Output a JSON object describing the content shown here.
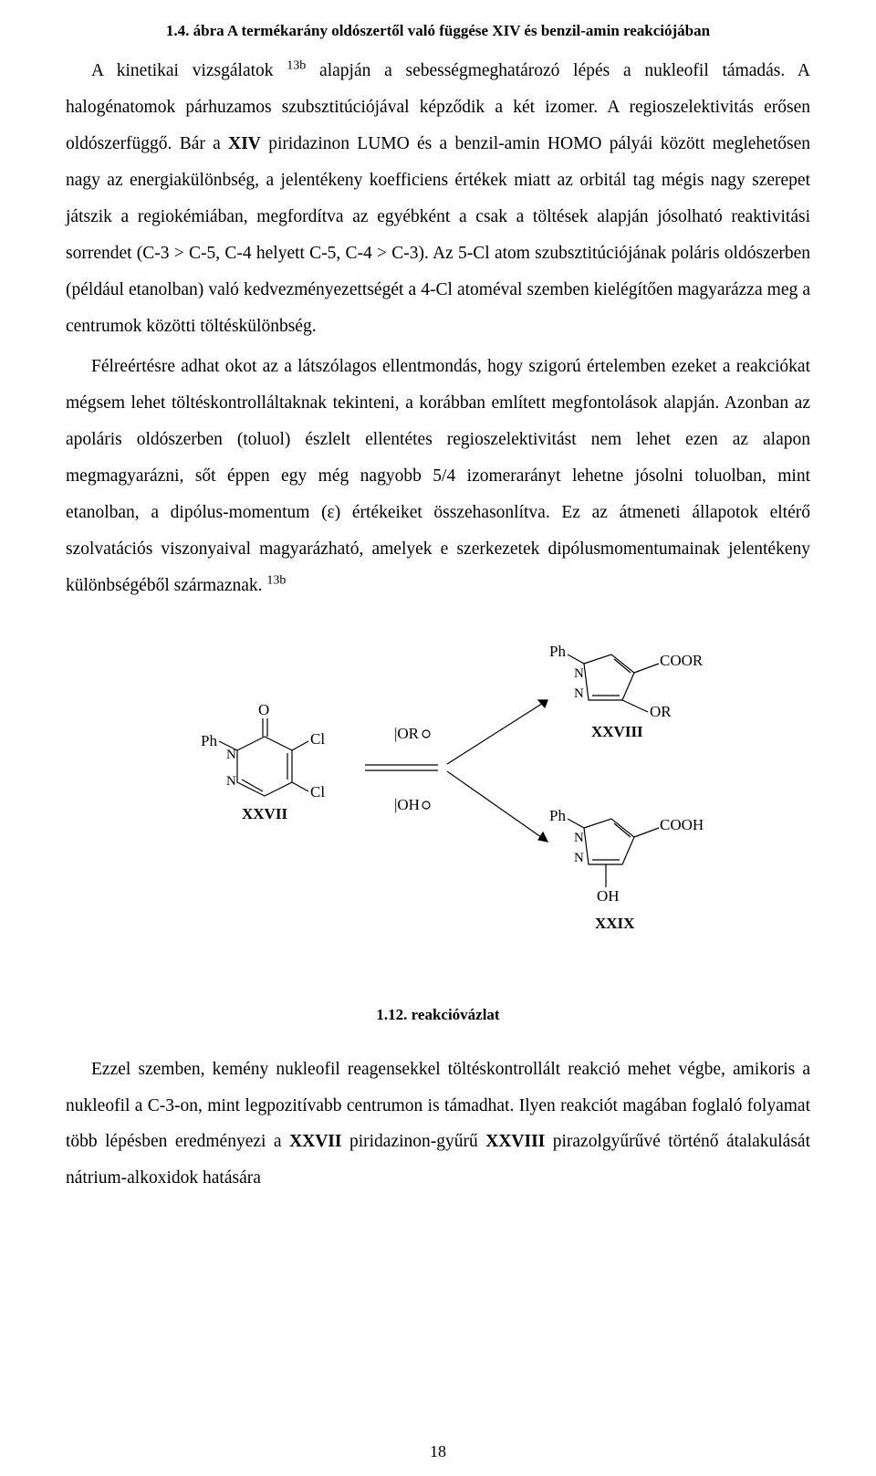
{
  "top_caption_html": "1.4. ábra A termékarány oldószertől való függése XIV és benzil-amin reakciójában",
  "para1_html": "A kinetikai vizsgálatok <sup>13b</sup> alapján a sebességmeghatározó lépés a nukleofil támadás. A halogénatomok párhuzamos szubsztitúciójával képződik a két izomer. A regioszelektivitás erősen oldószerfüggő. Bár a <span class=\"b\">XIV</span> piridazinon LUMO és a benzil-amin HOMO pályái között meglehetősen nagy az energiakülönbség, a jelentékeny koefficiens értékek miatt az orbitál tag mégis nagy szerepet játszik a regiokémiában, megfordítva az egyébként a csak a töltések alapján jósolható reaktivitási sorrendet (C-3 &gt; C-5, C-4 helyett C-5, C-4 &gt; C-3). Az 5-Cl atom szubsztitúciójának poláris oldószerben (például etanolban) való kedvezményezettségét a 4-Cl atoméval szemben kielégítően magyarázza meg a centrumok közötti töltéskülönbség.",
  "para2_html": "Félreértésre adhat okot az a látszólagos ellentmondás, hogy szigorú értelemben ezeket a reakciókat mégsem lehet töltéskontrolláltaknak tekinteni, a korábban említett megfontolások alapján. Azonban az apoláris oldószerben (toluol) észlelt ellentétes regioszelektivitást nem lehet ezen az alapon megmagyarázni, sőt éppen egy még nagyobb 5/4 izomerarányt lehetne jósolni toluolban, mint etanolban, a dipólus-momentum (ε) értékeiket összehasonlítva. Ez az átmeneti állapotok eltérő szolvatációs viszonyaival magyarázható, amelyek e szerkezetek dipólusmomentumainak jelentékeny különbségéből származnak. <sup>13b</sup>",
  "para3_html": "Ezzel szemben, kemény nukleofil reagensekkel töltéskontrollált reakció mehet végbe, amikoris a nukleofil a C-3-on, mint legpozitívabb centrumon is támadhat. Ilyen reakciót magában foglaló folyamat több lépésben eredményezi a <span class=\"b\">XXVII</span> piridazinon-gyűrű <span class=\"b\">XXVIII</span> pirazolgyűrűvé történő átalakulását nátrium-alkoxidok hatására",
  "scheme": {
    "label_XXVII": "XXVII",
    "label_XXVIII": "XXVIII",
    "label_XXIX": "XXIX",
    "reagent_top": "|OR",
    "reagent_bot": "|OH",
    "atoms": {
      "Ph": "Ph",
      "O": "O",
      "Cl": "Cl",
      "N": "N",
      "COOR": "COOR",
      "OR": "OR",
      "COOH": "COOH",
      "OH": "OH"
    },
    "caption": "1.12. reakcióvázlat"
  },
  "style": {
    "stroke": "#000000",
    "stroke_width": 1.2,
    "font_family": "Times New Roman",
    "bg": "#ffffff"
  },
  "page_number": "18"
}
